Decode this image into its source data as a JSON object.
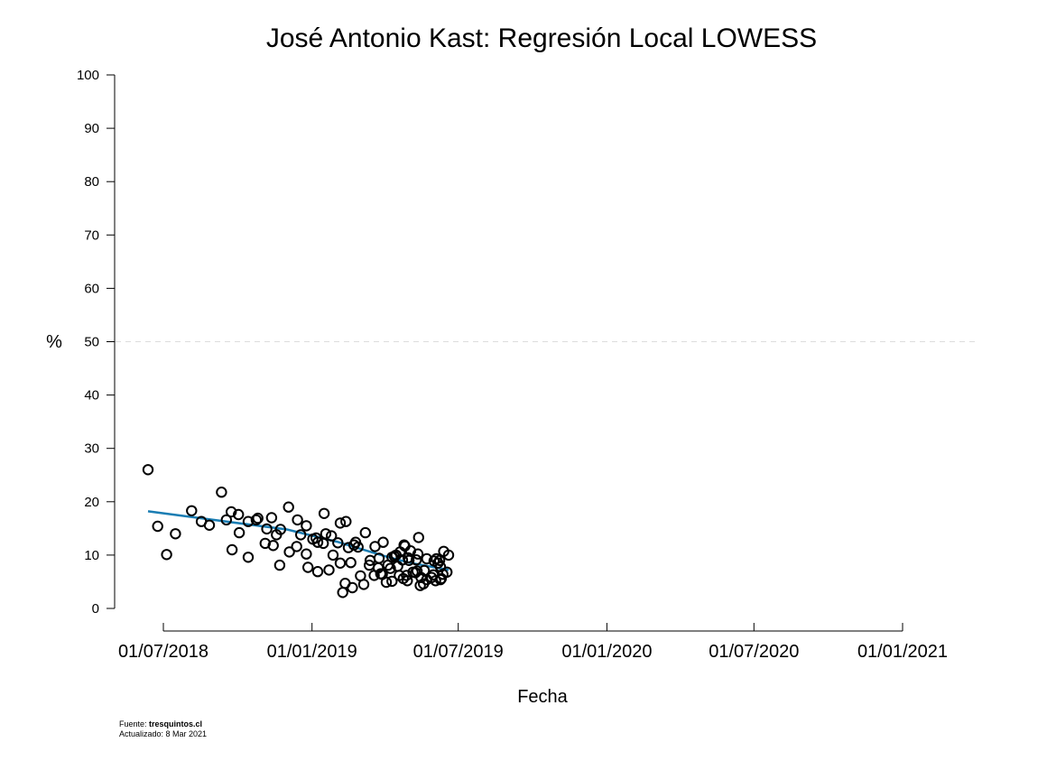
{
  "chart_data": {
    "type": "scatter",
    "title": "José Antonio Kast: Regresión Local LOWESS",
    "xlabel": "Fecha",
    "ylabel": "%",
    "ylim": [
      0,
      100
    ],
    "yticks": [
      0,
      10,
      20,
      30,
      40,
      50,
      60,
      70,
      80,
      90,
      100
    ],
    "xticks": [
      "2018-07-01",
      "2019-01-01",
      "2019-07-01",
      "2020-01-01",
      "2020-07-01",
      "2021-01-01"
    ],
    "xtick_labels": [
      "01/07/2018",
      "01/01/2019",
      "01/07/2019",
      "01/01/2020",
      "01/07/2020",
      "01/01/2021"
    ],
    "reference_line": 50,
    "grid": false,
    "colors": {
      "points": "#000000",
      "trend": "#1a7db3",
      "reference": "#dddddd"
    },
    "points": [
      {
        "x": "2018-06-12",
        "y": 26
      },
      {
        "x": "2018-06-24",
        "y": 15.4
      },
      {
        "x": "2018-07-05",
        "y": 10.1
      },
      {
        "x": "2018-07-16",
        "y": 14
      },
      {
        "x": "2018-08-05",
        "y": 18.3
      },
      {
        "x": "2018-08-17",
        "y": 16.3
      },
      {
        "x": "2018-08-27",
        "y": 15.6
      },
      {
        "x": "2018-09-11",
        "y": 21.8
      },
      {
        "x": "2018-09-17",
        "y": 16.6
      },
      {
        "x": "2018-09-23",
        "y": 18.1
      },
      {
        "x": "2018-09-24",
        "y": 11
      },
      {
        "x": "2018-10-02",
        "y": 17.6
      },
      {
        "x": "2018-10-03",
        "y": 14.2
      },
      {
        "x": "2018-10-14",
        "y": 16.3
      },
      {
        "x": "2018-10-14",
        "y": 9.6
      },
      {
        "x": "2018-10-24",
        "y": 16.6
      },
      {
        "x": "2018-10-26",
        "y": 16.9
      },
      {
        "x": "2018-11-04",
        "y": 12.2
      },
      {
        "x": "2018-11-06",
        "y": 14.9
      },
      {
        "x": "2018-11-12",
        "y": 17
      },
      {
        "x": "2018-11-14",
        "y": 11.8
      },
      {
        "x": "2018-11-18",
        "y": 13.8
      },
      {
        "x": "2018-11-22",
        "y": 8.1
      },
      {
        "x": "2018-11-23",
        "y": 14.8
      },
      {
        "x": "2018-12-03",
        "y": 19
      },
      {
        "x": "2018-12-04",
        "y": 10.6
      },
      {
        "x": "2018-12-13",
        "y": 11.6
      },
      {
        "x": "2018-12-14",
        "y": 16.6
      },
      {
        "x": "2018-12-18",
        "y": 13.8
      },
      {
        "x": "2018-12-25",
        "y": 15.5
      },
      {
        "x": "2018-12-25",
        "y": 10.2
      },
      {
        "x": "2018-12-27",
        "y": 7.7
      },
      {
        "x": "2019-01-02",
        "y": 13
      },
      {
        "x": "2019-01-06",
        "y": 13.2
      },
      {
        "x": "2019-01-08",
        "y": 6.9
      },
      {
        "x": "2019-01-08",
        "y": 12.4
      },
      {
        "x": "2019-01-15",
        "y": 12.2
      },
      {
        "x": "2019-01-16",
        "y": 17.8
      },
      {
        "x": "2019-01-18",
        "y": 14
      },
      {
        "x": "2019-01-22",
        "y": 7.2
      },
      {
        "x": "2019-01-25",
        "y": 13.6
      },
      {
        "x": "2019-01-27",
        "y": 10
      },
      {
        "x": "2019-02-02",
        "y": 12.3
      },
      {
        "x": "2019-02-05",
        "y": 8.5
      },
      {
        "x": "2019-02-05",
        "y": 16
      },
      {
        "x": "2019-02-08",
        "y": 3
      },
      {
        "x": "2019-02-11",
        "y": 4.7
      },
      {
        "x": "2019-02-12",
        "y": 16.3
      },
      {
        "x": "2019-02-15",
        "y": 11.4
      },
      {
        "x": "2019-02-18",
        "y": 8.6
      },
      {
        "x": "2019-02-20",
        "y": 3.9
      },
      {
        "x": "2019-02-22",
        "y": 11.9
      },
      {
        "x": "2019-02-24",
        "y": 12.4
      },
      {
        "x": "2019-02-27",
        "y": 11.5
      },
      {
        "x": "2019-03-02",
        "y": 6.1
      },
      {
        "x": "2019-03-06",
        "y": 4.5
      },
      {
        "x": "2019-03-08",
        "y": 14.2
      },
      {
        "x": "2019-03-13",
        "y": 8.1
      },
      {
        "x": "2019-03-14",
        "y": 9
      },
      {
        "x": "2019-03-19",
        "y": 6.2
      },
      {
        "x": "2019-03-20",
        "y": 11.6
      },
      {
        "x": "2019-03-24",
        "y": 7.6
      },
      {
        "x": "2019-03-25",
        "y": 9.4
      },
      {
        "x": "2019-03-27",
        "y": 6.5
      },
      {
        "x": "2019-03-29",
        "y": 6.4
      },
      {
        "x": "2019-03-30",
        "y": 12.4
      },
      {
        "x": "2019-04-03",
        "y": 4.9
      },
      {
        "x": "2019-04-05",
        "y": 8.1
      },
      {
        "x": "2019-04-08",
        "y": 7.5
      },
      {
        "x": "2019-04-10",
        "y": 5.1
      },
      {
        "x": "2019-04-10",
        "y": 9.6
      },
      {
        "x": "2019-04-13",
        "y": 9.8
      },
      {
        "x": "2019-04-15",
        "y": 10
      },
      {
        "x": "2019-04-17",
        "y": 7.9
      },
      {
        "x": "2019-04-19",
        "y": 6.2
      },
      {
        "x": "2019-04-20",
        "y": 10.6
      },
      {
        "x": "2019-04-23",
        "y": 9.1
      },
      {
        "x": "2019-04-24",
        "y": 5.6
      },
      {
        "x": "2019-04-25",
        "y": 11.9
      },
      {
        "x": "2019-04-26",
        "y": 11.7
      },
      {
        "x": "2019-04-28",
        "y": 6.2
      },
      {
        "x": "2019-04-29",
        "y": 5.2
      },
      {
        "x": "2019-04-30",
        "y": 9.5
      },
      {
        "x": "2019-05-01",
        "y": 9
      },
      {
        "x": "2019-05-03",
        "y": 10.8
      },
      {
        "x": "2019-05-06",
        "y": 6.8
      },
      {
        "x": "2019-05-09",
        "y": 6.7
      },
      {
        "x": "2019-05-10",
        "y": 9.1
      },
      {
        "x": "2019-05-12",
        "y": 10.2
      },
      {
        "x": "2019-05-11",
        "y": 7
      },
      {
        "x": "2019-05-13",
        "y": 13.3
      },
      {
        "x": "2019-05-15",
        "y": 4.3
      },
      {
        "x": "2019-05-16",
        "y": 5.8
      },
      {
        "x": "2019-05-19",
        "y": 4.6
      },
      {
        "x": "2019-05-20",
        "y": 7.1
      },
      {
        "x": "2019-05-23",
        "y": 9.3
      },
      {
        "x": "2019-05-23",
        "y": 5.4
      },
      {
        "x": "2019-05-29",
        "y": 5.8
      },
      {
        "x": "2019-05-31",
        "y": 6.3
      },
      {
        "x": "2019-06-01",
        "y": 8.9
      },
      {
        "x": "2019-06-03",
        "y": 5.2
      },
      {
        "x": "2019-06-04",
        "y": 9.3
      },
      {
        "x": "2019-06-06",
        "y": 8.5
      },
      {
        "x": "2019-06-08",
        "y": 9
      },
      {
        "x": "2019-06-09",
        "y": 7.8
      },
      {
        "x": "2019-06-09",
        "y": 5.4
      },
      {
        "x": "2019-06-10",
        "y": 5.6
      },
      {
        "x": "2019-06-12",
        "y": 6.4
      },
      {
        "x": "2019-06-13",
        "y": 10.7
      },
      {
        "x": "2019-06-17",
        "y": 6.8
      },
      {
        "x": "2019-06-19",
        "y": 10
      }
    ],
    "trend": [
      {
        "x": "2018-06-12",
        "y": 18.2
      },
      {
        "x": "2018-09-01",
        "y": 16.6
      },
      {
        "x": "2018-12-01",
        "y": 14.8
      },
      {
        "x": "2019-02-01",
        "y": 12.5
      },
      {
        "x": "2019-04-01",
        "y": 9.8
      },
      {
        "x": "2019-05-01",
        "y": 8.6
      },
      {
        "x": "2019-06-19",
        "y": 7.2
      }
    ]
  },
  "footer": {
    "source_label": "Fuente: ",
    "source_value": "tresquintos.cl",
    "updated": "Actualizado: 8 Mar 2021"
  }
}
